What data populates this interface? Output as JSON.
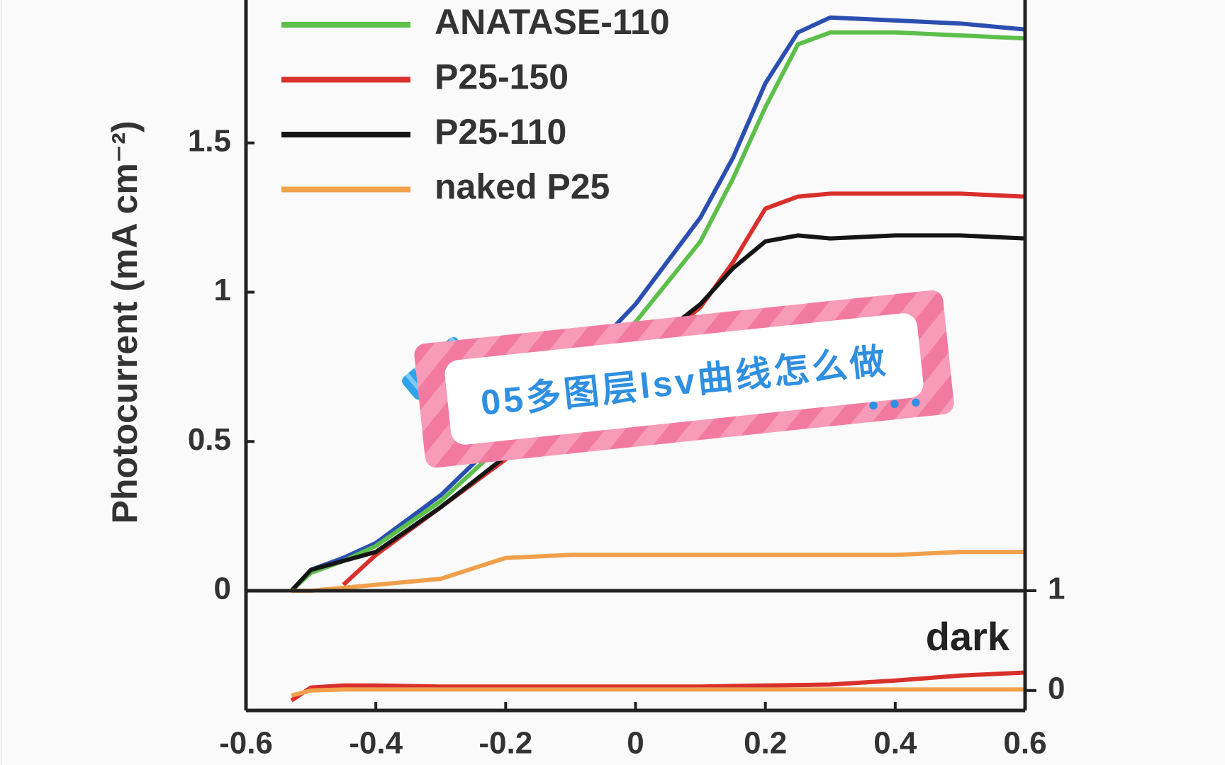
{
  "chart_data": [
    {
      "type": "line",
      "y_label": "Photocurrent (mA cm⁻²)",
      "x": [
        -0.53,
        -0.5,
        -0.45,
        -0.4,
        -0.3,
        -0.2,
        -0.1,
        0,
        0.1,
        0.15,
        0.2,
        0.25,
        0.3,
        0.4,
        0.5,
        0.6
      ],
      "series": [
        {
          "color": "#2b4fb0",
          "values": [
            0,
            0.07,
            0.11,
            0.16,
            0.32,
            0.53,
            0.73,
            0.96,
            1.25,
            1.45,
            1.7,
            1.87,
            1.92,
            1.91,
            1.9,
            1.88
          ]
        },
        {
          "name": "ANATASE-110",
          "color": "#5cbf4a",
          "values": [
            0,
            0.06,
            0.1,
            0.15,
            0.3,
            0.5,
            0.69,
            0.9,
            1.17,
            1.38,
            1.62,
            1.83,
            1.87,
            1.87,
            1.86,
            1.85
          ]
        },
        {
          "name": "P25-150",
          "color": "#d9302c",
          "values": [
            null,
            null,
            0.02,
            0.12,
            0.28,
            0.44,
            0.6,
            0.77,
            0.95,
            1.1,
            1.28,
            1.32,
            1.33,
            1.33,
            1.33,
            1.32
          ]
        },
        {
          "name": "P25-110",
          "color": "#151515",
          "values": [
            0,
            0.07,
            0.1,
            0.13,
            0.28,
            0.45,
            0.62,
            0.79,
            0.96,
            1.08,
            1.17,
            1.19,
            1.18,
            1.19,
            1.19,
            1.18
          ]
        },
        {
          "name": "naked P25",
          "color": "#f0a04b",
          "values": [
            0,
            0,
            0.01,
            0.02,
            0.04,
            0.11,
            0.12,
            0.12,
            0.12,
            0.12,
            0.12,
            0.12,
            0.12,
            0.12,
            0.13,
            0.13
          ]
        }
      ],
      "xlim": [
        -0.6,
        0.6
      ],
      "ylim": [
        0,
        2
      ],
      "yticks": [
        0,
        0.5,
        1,
        1.5
      ]
    },
    {
      "type": "line",
      "annotation": "dark",
      "x": [
        -0.53,
        -0.5,
        -0.45,
        -0.4,
        -0.3,
        -0.2,
        -0.1,
        0,
        0.1,
        0.2,
        0.3,
        0.4,
        0.5,
        0.6
      ],
      "series": [
        {
          "color": "#d9302c",
          "values": [
            -0.1,
            0.03,
            0.05,
            0.05,
            0.04,
            0.04,
            0.04,
            0.04,
            0.04,
            0.05,
            0.06,
            0.1,
            0.15,
            0.18
          ]
        },
        {
          "color": "#f0a04b",
          "values": [
            -0.05,
            0,
            0.01,
            0.01,
            0.01,
            0.01,
            0.01,
            0.01,
            0.01,
            0.01,
            0.01,
            0.01,
            0.01,
            0.01
          ]
        }
      ],
      "xlim": [
        -0.6,
        0.6
      ],
      "xticks": [
        -0.6,
        -0.4,
        -0.2,
        0,
        0.2,
        0.4,
        0.6
      ],
      "y2lim": [
        -0.2,
        1
      ],
      "y2ticks": [
        0,
        1
      ]
    }
  ],
  "overlay_text": "05多图层lsv曲线怎么做"
}
